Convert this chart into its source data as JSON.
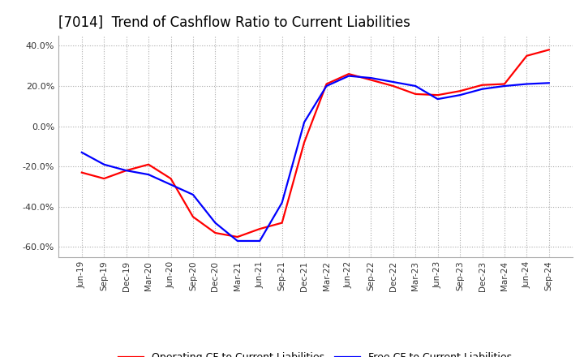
{
  "title": "[7014]  Trend of Cashflow Ratio to Current Liabilities",
  "title_fontsize": 12,
  "title_fontweight": "normal",
  "ylim": [
    -0.65,
    0.45
  ],
  "yticks": [
    -0.6,
    -0.4,
    -0.2,
    0.0,
    0.2,
    0.4
  ],
  "ytick_labels": [
    "-60.0%",
    "-40.0%",
    "-20.0%",
    "0.0%",
    "20.0%",
    "40.0%"
  ],
  "x_labels": [
    "Jun-19",
    "Sep-19",
    "Dec-19",
    "Mar-20",
    "Jun-20",
    "Sep-20",
    "Dec-20",
    "Mar-21",
    "Jun-21",
    "Sep-21",
    "Dec-21",
    "Mar-22",
    "Jun-22",
    "Sep-22",
    "Dec-22",
    "Mar-23",
    "Jun-23",
    "Sep-23",
    "Dec-23",
    "Mar-24",
    "Jun-24",
    "Sep-24"
  ],
  "operating_cf": [
    -0.23,
    -0.26,
    -0.22,
    -0.19,
    -0.26,
    -0.45,
    -0.53,
    -0.55,
    -0.51,
    -0.48,
    -0.08,
    0.21,
    0.26,
    0.23,
    0.2,
    0.16,
    0.155,
    0.175,
    0.205,
    0.21,
    0.35,
    0.38
  ],
  "free_cf": [
    -0.13,
    -0.19,
    -0.22,
    -0.24,
    -0.29,
    -0.34,
    -0.48,
    -0.57,
    -0.57,
    -0.38,
    0.02,
    0.2,
    0.25,
    0.24,
    0.22,
    0.2,
    0.135,
    0.155,
    0.185,
    0.2,
    0.21,
    0.215
  ],
  "operating_color": "#ff0000",
  "free_color": "#0000ff",
  "line_width": 1.6,
  "background_color": "#ffffff",
  "grid_color": "#aaaaaa",
  "legend_labels": [
    "Operating CF to Current Liabilities",
    "Free CF to Current Liabilities"
  ]
}
